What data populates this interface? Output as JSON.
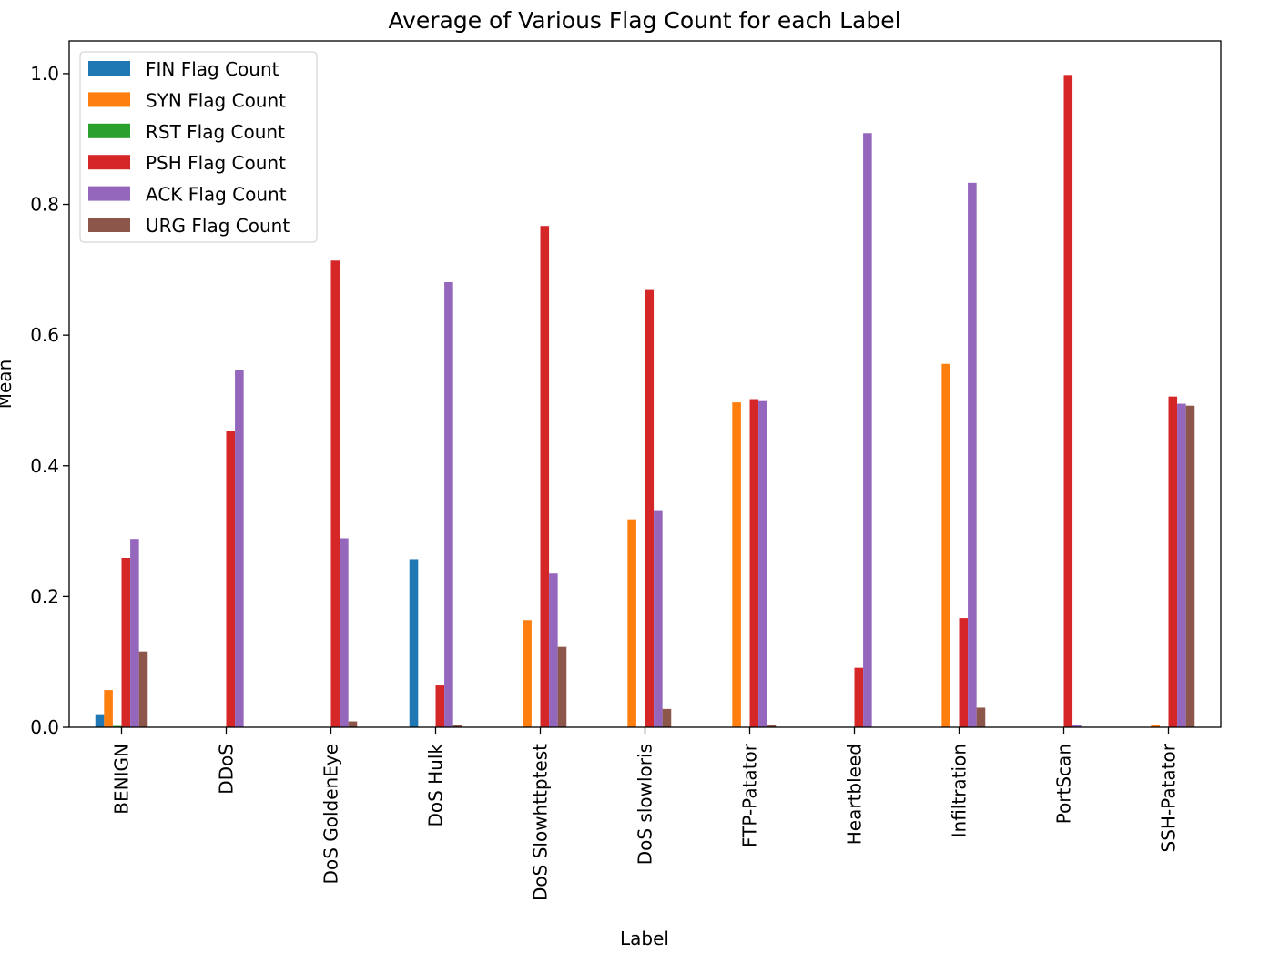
{
  "chart_data": {
    "type": "bar",
    "title": "Average of Various Flag Count for each Label",
    "xlabel": "Label",
    "ylabel": "Mean",
    "ylim": [
      0,
      1.05
    ],
    "yticks": [
      "0.0",
      "0.2",
      "0.4",
      "0.6",
      "0.8",
      "1.0"
    ],
    "ytick_values": [
      0,
      0.2,
      0.4,
      0.6,
      0.8,
      1.0
    ],
    "grid": false,
    "legend_position": "top-left",
    "categories": [
      "BENIGN",
      "DDoS",
      "DoS GoldenEye",
      "DoS Hulk",
      "DoS Slowhttptest",
      "DoS slowloris",
      "FTP-Patator",
      "Heartbleed",
      "Infiltration",
      "PortScan",
      "SSH-Patator"
    ],
    "series": [
      {
        "name": "FIN Flag Count",
        "color": "#1f77b4",
        "values": [
          0.02,
          0.0,
          0.0,
          0.257,
          0.0,
          0.0,
          0.0,
          0.0,
          0.0,
          0.0,
          0.0
        ]
      },
      {
        "name": "SYN Flag Count",
        "color": "#ff7f0e",
        "values": [
          0.057,
          0.0,
          0.0,
          0.0,
          0.164,
          0.318,
          0.497,
          0.0,
          0.556,
          0.0,
          0.003
        ]
      },
      {
        "name": "RST Flag Count",
        "color": "#2ca02c",
        "values": [
          0.002,
          0.0,
          0.0,
          0.0,
          0.0,
          0.0,
          0.0,
          0.0,
          0.0,
          0.0,
          0.0
        ]
      },
      {
        "name": "PSH Flag Count",
        "color": "#d62728",
        "values": [
          0.259,
          0.453,
          0.714,
          0.064,
          0.767,
          0.669,
          0.502,
          0.091,
          0.167,
          0.998,
          0.506
        ]
      },
      {
        "name": "ACK Flag Count",
        "color": "#9467bd",
        "values": [
          0.288,
          0.547,
          0.289,
          0.681,
          0.235,
          0.332,
          0.499,
          0.909,
          0.833,
          0.003,
          0.495
        ]
      },
      {
        "name": "URG Flag Count",
        "color": "#8c564b",
        "values": [
          0.116,
          0.0,
          0.009,
          0.003,
          0.123,
          0.028,
          0.003,
          0.0,
          0.03,
          0.0,
          0.492
        ]
      }
    ]
  }
}
